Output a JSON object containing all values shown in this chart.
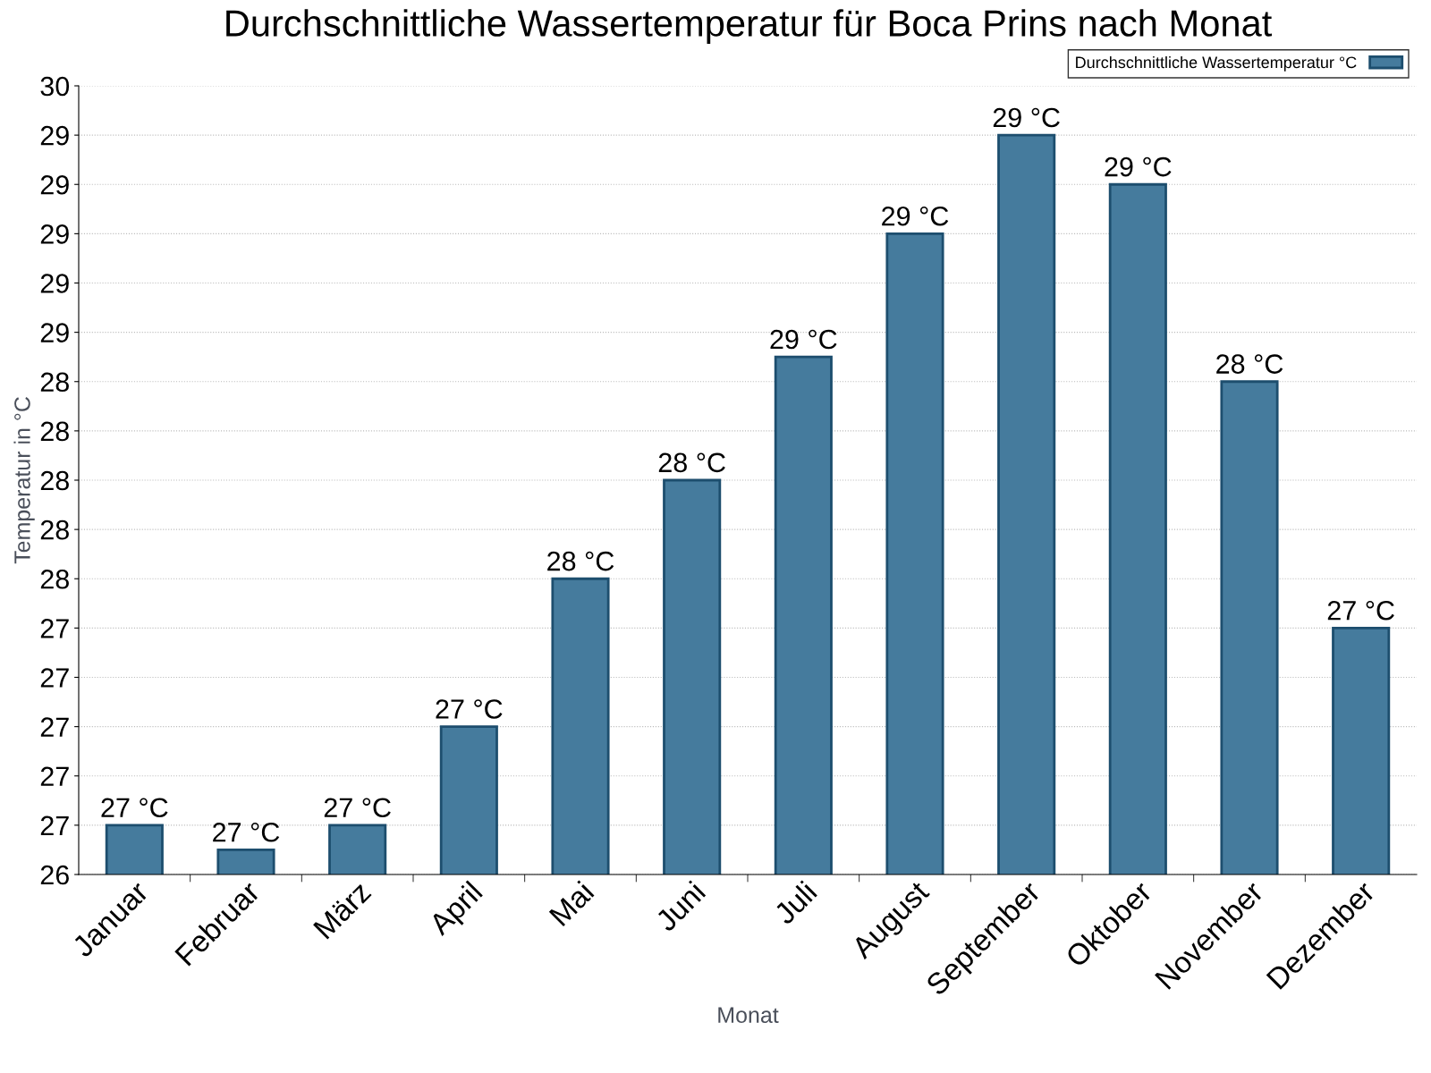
{
  "chart_data": {
    "type": "bar",
    "title": "Durchschnittliche Wassertemperatur für Boca Prins nach Monat",
    "xlabel": "Monat",
    "ylabel": "Temperatur in °C",
    "categories": [
      "Januar",
      "Februar",
      "März",
      "April",
      "Mai",
      "Juni",
      "Juli",
      "August",
      "September",
      "Oktober",
      "November",
      "Dezember"
    ],
    "series": [
      {
        "name": "Durchschnittliche Wassertemperatur °C",
        "color": "#457b9d",
        "values": [
          26.6,
          26.5,
          26.6,
          27.0,
          27.6,
          28.0,
          28.5,
          29.0,
          29.4,
          29.2,
          28.4,
          27.4
        ],
        "value_labels": [
          "27 °C",
          "27 °C",
          "27 °C",
          "27 °C",
          "28 °C",
          "28 °C",
          "29 °C",
          "29 °C",
          "29 °C",
          "29 °C",
          "28 °C",
          "27 °C"
        ]
      }
    ],
    "ylim": [
      26.4,
      29.6
    ],
    "yticks": [
      {
        "value": 26.4,
        "label": "26"
      },
      {
        "value": 26.6,
        "label": "27"
      },
      {
        "value": 26.8,
        "label": "27"
      },
      {
        "value": 27.0,
        "label": "27"
      },
      {
        "value": 27.2,
        "label": "27"
      },
      {
        "value": 27.4,
        "label": "27"
      },
      {
        "value": 27.6,
        "label": "28"
      },
      {
        "value": 27.8,
        "label": "28"
      },
      {
        "value": 28.0,
        "label": "28"
      },
      {
        "value": 28.2,
        "label": "28"
      },
      {
        "value": 28.4,
        "label": "28"
      },
      {
        "value": 28.6,
        "label": "29"
      },
      {
        "value": 28.8,
        "label": "29"
      },
      {
        "value": 29.0,
        "label": "29"
      },
      {
        "value": 29.2,
        "label": "29"
      },
      {
        "value": 29.4,
        "label": "29"
      },
      {
        "value": 29.6,
        "label": "30"
      }
    ],
    "grid": "y",
    "legend": "top right"
  }
}
